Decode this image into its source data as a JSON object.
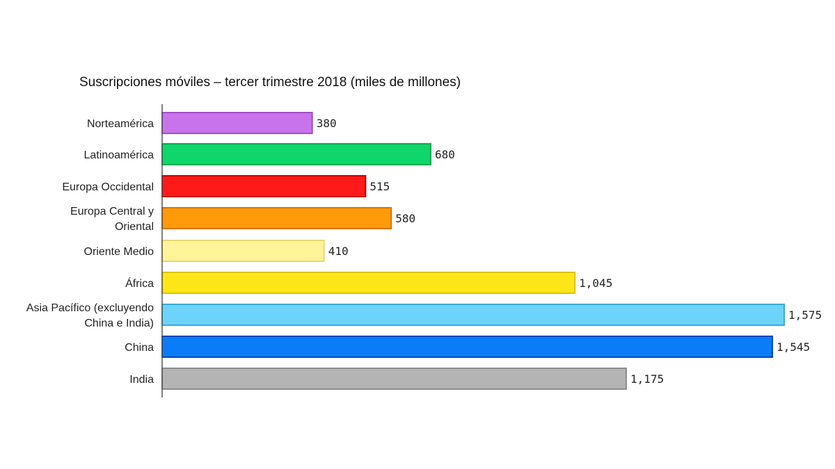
{
  "chart_data": {
    "type": "bar",
    "orientation": "horizontal",
    "title": "Suscripciones móviles – tercer trimestre 2018 (miles de millones)",
    "xlabel": "",
    "ylabel": "",
    "grid": false,
    "categories": [
      "Norteamérica",
      "Latinoamérica",
      "Europa Occidental",
      "Europa Central y\nOriental",
      "Oriente Medio",
      "África",
      "Asia Pacífico (excluyendo\nChina e India)",
      "China",
      "India"
    ],
    "values": [
      380,
      680,
      515,
      580,
      410,
      1045,
      1575,
      1545,
      1175
    ],
    "value_labels": [
      "380",
      "680",
      "515",
      "580",
      "410",
      "1,045",
      "1,575",
      "1,545",
      "1,175"
    ],
    "colors": [
      "#c873ea",
      "#0ed66a",
      "#ff1a1a",
      "#ff9a0a",
      "#fff49a",
      "#fde618",
      "#6dd3fb",
      "#0a7cf7",
      "#b4b4b4"
    ],
    "border_colors": [
      "#a04fc8",
      "#07a850",
      "#c40000",
      "#d97400",
      "#e8d770",
      "#d8c400",
      "#3aa9d9",
      "#0045b8",
      "#8c8c8c"
    ]
  }
}
